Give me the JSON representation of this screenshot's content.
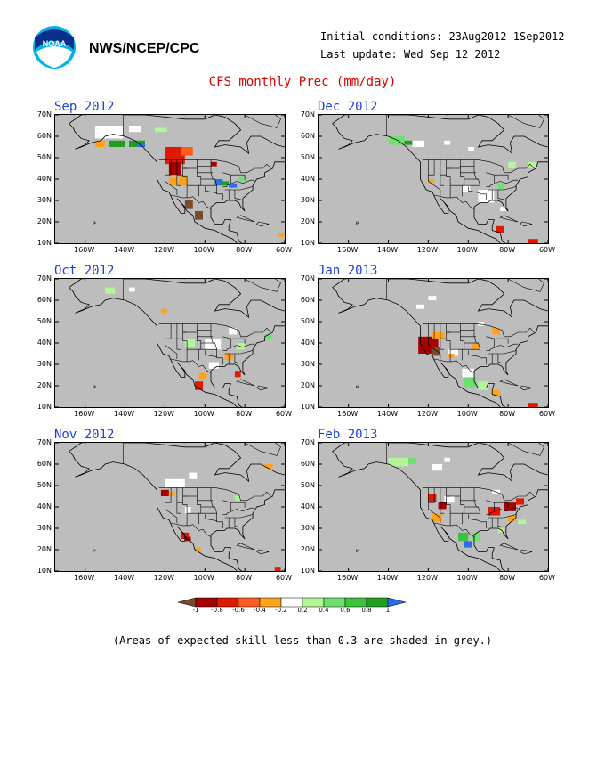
{
  "header": {
    "org": "NWS/NCEP/CPC",
    "initial_conditions": "Initial conditions: 23Aug2012–1Sep2012",
    "last_update": "Last update: Wed Sep 12 2012",
    "logo_icon": "noaa-logo-icon"
  },
  "title": "CFS monthly Prec (mm/day)",
  "footnote": "(Areas of expected skill less than 0.3 are shaded in grey.)",
  "axes": {
    "y_labels": [
      "70N",
      "60N",
      "50N",
      "40N",
      "30N",
      "20N",
      "10N"
    ],
    "x_labels": [
      "160W",
      "140W",
      "120W",
      "100W",
      "80W",
      "60W"
    ]
  },
  "colors": {
    "skill_mask": "#bdbdbd",
    "land": "#bdbdbd",
    "border": "#000000",
    "title": "#d40000",
    "panel_title": "#1f3fd6"
  },
  "legend": {
    "ticks": [
      "-1",
      "-0.8",
      "-0.6",
      "-0.4",
      "-0.2",
      "0.2",
      "0.4",
      "0.6",
      "0.8",
      "1"
    ],
    "colors": [
      "#7a4a2e",
      "#a60000",
      "#e01a00",
      "#ff5a1f",
      "#ffa31f",
      "#ffffff",
      "#b4f59a",
      "#6fe06f",
      "#3bc43b",
      "#1f9e1f",
      "#2a6ee8"
    ]
  },
  "panels": [
    {
      "label": "Sep 2012",
      "patches": [
        {
          "lon": -155,
          "lat": 65,
          "w": 14,
          "h": 6,
          "c": "#ffffff"
        },
        {
          "lon": -148,
          "lat": 58,
          "w": 8,
          "h": 3,
          "c": "#1f9e1f"
        },
        {
          "lon": -138,
          "lat": 58,
          "w": 8,
          "h": 3,
          "c": "#1f9e1f"
        },
        {
          "lon": -134,
          "lat": 57,
          "w": 4,
          "h": 2,
          "c": "#2a6ee8"
        },
        {
          "lon": -155,
          "lat": 58,
          "w": 5,
          "h": 3,
          "c": "#ffa31f"
        },
        {
          "lon": -120,
          "lat": 55,
          "w": 10,
          "h": 8,
          "c": "#e01a00"
        },
        {
          "lon": -112,
          "lat": 55,
          "w": 6,
          "h": 4,
          "c": "#ff5a1f"
        },
        {
          "lon": -118,
          "lat": 48,
          "w": 6,
          "h": 6,
          "c": "#a60000"
        },
        {
          "lon": -113,
          "lat": 42,
          "w": 4,
          "h": 5,
          "c": "#ffa31f"
        },
        {
          "lon": -118,
          "lat": 41,
          "w": 4,
          "h": 4,
          "c": "#ffa31f"
        },
        {
          "lon": -110,
          "lat": 30,
          "w": 4,
          "h": 4,
          "c": "#7a4a2e"
        },
        {
          "lon": -105,
          "lat": 25,
          "w": 4,
          "h": 4,
          "c": "#7a4a2e"
        },
        {
          "lon": -95,
          "lat": 40,
          "w": 4,
          "h": 3,
          "c": "#2a6ee8"
        },
        {
          "lon": -92,
          "lat": 39,
          "w": 4,
          "h": 2,
          "c": "#1f9e1f"
        },
        {
          "lon": -88,
          "lat": 38,
          "w": 4,
          "h": 2,
          "c": "#2a6ee8"
        },
        {
          "lon": -97,
          "lat": 48,
          "w": 3,
          "h": 2,
          "c": "#a60000"
        },
        {
          "lon": -83,
          "lat": 41,
          "w": 4,
          "h": 2,
          "c": "#6fe06f"
        },
        {
          "lon": -138,
          "lat": 65,
          "w": 6,
          "h": 3,
          "c": "#ffffff"
        },
        {
          "lon": -125,
          "lat": 64,
          "w": 6,
          "h": 2,
          "c": "#b4f59a"
        },
        {
          "lon": -63,
          "lat": 15,
          "w": 3,
          "h": 2,
          "c": "#ffa31f"
        }
      ]
    },
    {
      "label": "Dec 2012",
      "patches": [
        {
          "lon": -140,
          "lat": 60,
          "w": 8,
          "h": 4,
          "c": "#6fe06f"
        },
        {
          "lon": -132,
          "lat": 58,
          "w": 4,
          "h": 2,
          "c": "#1f9e1f"
        },
        {
          "lon": -128,
          "lat": 58,
          "w": 6,
          "h": 3,
          "c": "#ffffff"
        },
        {
          "lon": -112,
          "lat": 58,
          "w": 3,
          "h": 2,
          "c": "#ffffff"
        },
        {
          "lon": -100,
          "lat": 55,
          "w": 3,
          "h": 2,
          "c": "#ffffff"
        },
        {
          "lon": -95,
          "lat": 35,
          "w": 8,
          "h": 6,
          "c": "#ffffff"
        },
        {
          "lon": -103,
          "lat": 37,
          "w": 4,
          "h": 3,
          "c": "#ffffff"
        },
        {
          "lon": -85,
          "lat": 38,
          "w": 3,
          "h": 3,
          "c": "#6fe06f"
        },
        {
          "lon": -80,
          "lat": 48,
          "w": 4,
          "h": 3,
          "c": "#b4f59a"
        },
        {
          "lon": -70,
          "lat": 48,
          "w": 4,
          "h": 3,
          "c": "#b4f59a"
        },
        {
          "lon": -120,
          "lat": 40,
          "w": 3,
          "h": 2,
          "c": "#ffa31f"
        },
        {
          "lon": -86,
          "lat": 18,
          "w": 4,
          "h": 3,
          "c": "#e01a00"
        },
        {
          "lon": -84,
          "lat": 27,
          "w": 3,
          "h": 2,
          "c": "#ffffff"
        },
        {
          "lon": -70,
          "lat": 12,
          "w": 5,
          "h": 2,
          "c": "#e01a00"
        }
      ]
    },
    {
      "label": "Oct 2012",
      "patches": [
        {
          "lon": -150,
          "lat": 66,
          "w": 5,
          "h": 3,
          "c": "#b4f59a"
        },
        {
          "lon": -138,
          "lat": 66,
          "w": 3,
          "h": 2,
          "c": "#ffffff"
        },
        {
          "lon": -110,
          "lat": 42,
          "w": 5,
          "h": 4,
          "c": "#b4f59a"
        },
        {
          "lon": -100,
          "lat": 42,
          "w": 8,
          "h": 5,
          "c": "#ffffff"
        },
        {
          "lon": -98,
          "lat": 31,
          "w": 5,
          "h": 3,
          "c": "#ffffff"
        },
        {
          "lon": -90,
          "lat": 35,
          "w": 4,
          "h": 3,
          "c": "#ffa31f"
        },
        {
          "lon": -84,
          "lat": 40,
          "w": 4,
          "h": 3,
          "c": "#b4f59a"
        },
        {
          "lon": -88,
          "lat": 47,
          "w": 4,
          "h": 3,
          "c": "#ffffff"
        },
        {
          "lon": -70,
          "lat": 44,
          "w": 4,
          "h": 2,
          "c": "#6fe06f"
        },
        {
          "lon": -105,
          "lat": 22,
          "w": 4,
          "h": 4,
          "c": "#e01a00"
        },
        {
          "lon": -103,
          "lat": 26,
          "w": 4,
          "h": 3,
          "c": "#ffa31f"
        },
        {
          "lon": -85,
          "lat": 27,
          "w": 3,
          "h": 3,
          "c": "#e01a00"
        },
        {
          "lon": -122,
          "lat": 56,
          "w": 3,
          "h": 2,
          "c": "#ffa31f"
        }
      ]
    },
    {
      "label": "Jan 2013",
      "patches": [
        {
          "lon": -125,
          "lat": 43,
          "w": 10,
          "h": 8,
          "c": "#a60000"
        },
        {
          "lon": -118,
          "lat": 38,
          "w": 4,
          "h": 4,
          "c": "#7a4a2e"
        },
        {
          "lon": -118,
          "lat": 45,
          "w": 6,
          "h": 3,
          "c": "#ffa31f"
        },
        {
          "lon": -110,
          "lat": 37,
          "w": 5,
          "h": 3,
          "c": "#ffffff"
        },
        {
          "lon": -103,
          "lat": 28,
          "w": 6,
          "h": 4,
          "c": "#ffffff"
        },
        {
          "lon": -102,
          "lat": 24,
          "w": 6,
          "h": 5,
          "c": "#6fe06f"
        },
        {
          "lon": -95,
          "lat": 22,
          "w": 5,
          "h": 4,
          "c": "#b4f59a"
        },
        {
          "lon": -98,
          "lat": 40,
          "w": 4,
          "h": 3,
          "c": "#ffa31f"
        },
        {
          "lon": -88,
          "lat": 47,
          "w": 4,
          "h": 3,
          "c": "#ffa31f"
        },
        {
          "lon": -95,
          "lat": 50,
          "w": 3,
          "h": 2,
          "c": "#ffffff"
        },
        {
          "lon": -110,
          "lat": 35,
          "w": 3,
          "h": 2,
          "c": "#ffa31f"
        },
        {
          "lon": -88,
          "lat": 18,
          "w": 4,
          "h": 3,
          "c": "#ffa31f"
        },
        {
          "lon": -120,
          "lat": 62,
          "w": 4,
          "h": 2,
          "c": "#ffffff"
        },
        {
          "lon": -126,
          "lat": 58,
          "w": 4,
          "h": 2,
          "c": "#ffffff"
        },
        {
          "lon": -70,
          "lat": 12,
          "w": 5,
          "h": 2,
          "c": "#e01a00"
        }
      ]
    },
    {
      "label": "Nov 2012",
      "patches": [
        {
          "lon": -120,
          "lat": 53,
          "w": 10,
          "h": 4,
          "c": "#ffffff"
        },
        {
          "lon": -108,
          "lat": 56,
          "w": 4,
          "h": 3,
          "c": "#ffffff"
        },
        {
          "lon": -122,
          "lat": 48,
          "w": 4,
          "h": 3,
          "c": "#a60000"
        },
        {
          "lon": -118,
          "lat": 47,
          "w": 3,
          "h": 2,
          "c": "#ffa31f"
        },
        {
          "lon": -110,
          "lat": 40,
          "w": 3,
          "h": 3,
          "c": "#ffffff"
        },
        {
          "lon": -112,
          "lat": 28,
          "w": 4,
          "h": 3,
          "c": "#e01a00"
        },
        {
          "lon": -110,
          "lat": 26,
          "w": 3,
          "h": 2,
          "c": "#a60000"
        },
        {
          "lon": -105,
          "lat": 21,
          "w": 3,
          "h": 2,
          "c": "#ffa31f"
        },
        {
          "lon": -85,
          "lat": 45,
          "w": 3,
          "h": 2,
          "c": "#b4f59a"
        },
        {
          "lon": -70,
          "lat": 60,
          "w": 4,
          "h": 2,
          "c": "#ffa31f"
        },
        {
          "lon": -65,
          "lat": 12,
          "w": 3,
          "h": 2,
          "c": "#e01a00"
        }
      ]
    },
    {
      "label": "Feb 2013",
      "patches": [
        {
          "lon": -140,
          "lat": 63,
          "w": 10,
          "h": 4,
          "c": "#b4f59a"
        },
        {
          "lon": -130,
          "lat": 63,
          "w": 4,
          "h": 3,
          "c": "#6fe06f"
        },
        {
          "lon": -118,
          "lat": 60,
          "w": 5,
          "h": 3,
          "c": "#ffffff"
        },
        {
          "lon": -112,
          "lat": 63,
          "w": 3,
          "h": 2,
          "c": "#ffffff"
        },
        {
          "lon": -120,
          "lat": 46,
          "w": 4,
          "h": 4,
          "c": "#e01a00"
        },
        {
          "lon": -115,
          "lat": 42,
          "w": 4,
          "h": 3,
          "c": "#a60000"
        },
        {
          "lon": -118,
          "lat": 37,
          "w": 5,
          "h": 4,
          "c": "#ffa31f"
        },
        {
          "lon": -112,
          "lat": 45,
          "w": 5,
          "h": 3,
          "c": "#ffffff"
        },
        {
          "lon": -105,
          "lat": 28,
          "w": 5,
          "h": 4,
          "c": "#3bc43b"
        },
        {
          "lon": -98,
          "lat": 28,
          "w": 4,
          "h": 4,
          "c": "#6fe06f"
        },
        {
          "lon": -102,
          "lat": 24,
          "w": 4,
          "h": 3,
          "c": "#2a6ee8"
        },
        {
          "lon": -90,
          "lat": 40,
          "w": 6,
          "h": 4,
          "c": "#e01a00"
        },
        {
          "lon": -82,
          "lat": 42,
          "w": 6,
          "h": 4,
          "c": "#a60000"
        },
        {
          "lon": -76,
          "lat": 44,
          "w": 4,
          "h": 3,
          "c": "#e01a00"
        },
        {
          "lon": -80,
          "lat": 36,
          "w": 4,
          "h": 3,
          "c": "#ffa31f"
        },
        {
          "lon": -75,
          "lat": 34,
          "w": 4,
          "h": 2,
          "c": "#b4f59a"
        },
        {
          "lon": -88,
          "lat": 48,
          "w": 4,
          "h": 2,
          "c": "#ffffff"
        },
        {
          "lon": -70,
          "lat": 10,
          "w": 6,
          "h": 2,
          "c": "#a60000"
        },
        {
          "lon": -85,
          "lat": 30,
          "w": 3,
          "h": 2,
          "c": "#b4f59a"
        }
      ]
    }
  ]
}
